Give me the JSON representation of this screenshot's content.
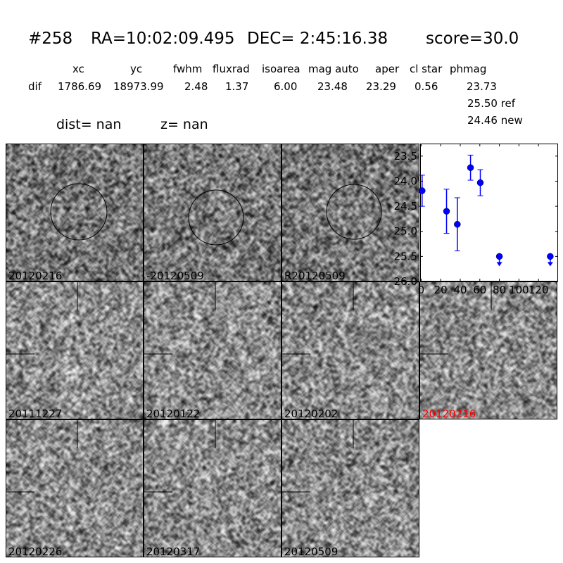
{
  "header": {
    "id": "#258",
    "ra": "RA=10:02:09.495",
    "dec": "DEC= 2:45:16.38",
    "score": "score=30.0"
  },
  "table": {
    "columns": [
      "xc",
      "yc",
      "fwhm",
      "fluxrad",
      "isoarea",
      "mag auto",
      "aper",
      "cl star",
      "phmag"
    ],
    "row_label": "dif",
    "values": [
      "1786.69",
      "18973.99",
      "2.48",
      "1.37",
      "6.00",
      "23.48",
      "23.29",
      "0.56",
      "23.73"
    ],
    "ref": "25.50 ref",
    "new": "24.46 new"
  },
  "dist": "dist=   nan",
  "z": "z=   nan",
  "stamps": [
    {
      "label": "20120216",
      "circle": true
    },
    {
      "label": "-20120509",
      "circle": true
    },
    {
      "label": "R20120509",
      "circle": true
    },
    {
      "label": "20111227",
      "cross": true
    },
    {
      "label": "20120122",
      "cross": true
    },
    {
      "label": "20120202",
      "cross": true
    },
    {
      "label": "20120216",
      "cross": true,
      "highlight": true,
      "color": "#ff0000"
    },
    {
      "label": "20120226",
      "cross": true
    },
    {
      "label": "20120317",
      "cross": true
    },
    {
      "label": "20120509",
      "cross": true
    }
  ],
  "chart_data": {
    "type": "scatter",
    "xlim": [
      -1,
      140
    ],
    "ylim": [
      26.0,
      23.25
    ],
    "y_inverted": true,
    "xticks": [
      "0",
      "20",
      "40",
      "60",
      "80",
      "100",
      "120"
    ],
    "yticks": [
      "23.5",
      "24.0",
      "24.5",
      "25.0",
      "25.5",
      "26.0"
    ],
    "color": "#0000ff",
    "points": [
      {
        "x": 1,
        "y": 24.19,
        "err": 0.31
      },
      {
        "x": 26,
        "y": 24.6,
        "err": 0.44
      },
      {
        "x": 37,
        "y": 24.86,
        "err": 0.53
      },
      {
        "x": 50.5,
        "y": 23.73,
        "err": 0.25
      },
      {
        "x": 60.5,
        "y": 24.03,
        "err": 0.26
      },
      {
        "x": 80,
        "y": 25.5,
        "upper_limit": true
      },
      {
        "x": 132,
        "y": 25.5,
        "upper_limit": true
      }
    ]
  }
}
